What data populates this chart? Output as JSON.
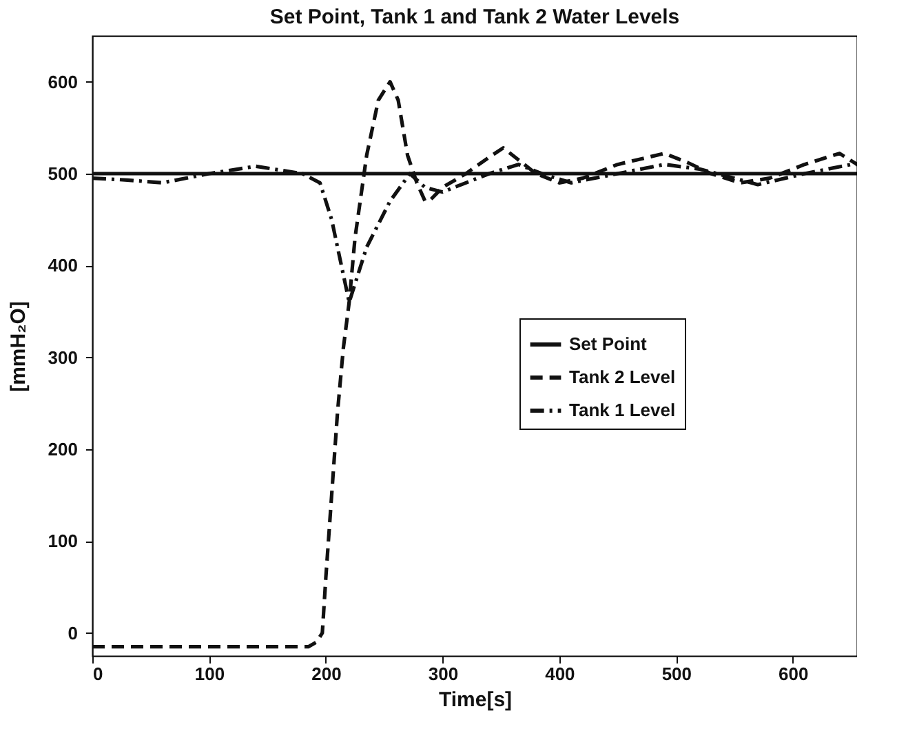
{
  "chart_data": {
    "type": "line",
    "title": "Set Point, Tank 1 and Tank 2 Water Levels",
    "xlabel": "Time[s]",
    "ylabel": "[mmH₂O]",
    "xlim": [
      0,
      655
    ],
    "ylim": [
      -25,
      650
    ],
    "xticks": [
      0,
      100,
      200,
      300,
      400,
      500,
      600
    ],
    "yticks": [
      0,
      100,
      200,
      300,
      400,
      500,
      600
    ],
    "legend": "right",
    "marker": "none",
    "grid": false,
    "series": [
      {
        "name": "Set Point",
        "color": "#111111",
        "line_style": "solid",
        "x": [
          0,
          655
        ],
        "values": [
          500,
          500
        ]
      },
      {
        "name": "Tank 2 Level",
        "color": "#111111",
        "line_style": "dashed",
        "x": [
          0,
          185,
          192,
          197,
          200,
          205,
          210,
          215,
          220,
          225,
          235,
          245,
          255,
          262,
          270,
          278,
          285,
          290,
          300,
          320,
          340,
          352,
          365,
          380,
          400,
          420,
          450,
          490,
          510,
          530,
          555,
          580,
          610,
          640,
          655
        ],
        "values": [
          -15,
          -15,
          -10,
          0,
          60,
          150,
          240,
          310,
          360,
          430,
          520,
          580,
          600,
          580,
          520,
          490,
          470,
          472,
          485,
          500,
          518,
          528,
          515,
          500,
          490,
          495,
          510,
          522,
          512,
          500,
          490,
          495,
          510,
          522,
          510
        ]
      },
      {
        "name": "Tank 1 Level",
        "color": "#111111",
        "line_style": "dashdot",
        "x": [
          0,
          30,
          60,
          100,
          140,
          180,
          195,
          205,
          220,
          235,
          255,
          272,
          285,
          300,
          320,
          340,
          365,
          385,
          410,
          450,
          490,
          520,
          550,
          570,
          610,
          650,
          655
        ],
        "values": [
          495,
          493,
          490,
          500,
          508,
          500,
          490,
          450,
          360,
          420,
          470,
          500,
          485,
          480,
          490,
          500,
          510,
          500,
          490,
          500,
          510,
          505,
          495,
          488,
          500,
          510,
          510
        ]
      }
    ]
  }
}
